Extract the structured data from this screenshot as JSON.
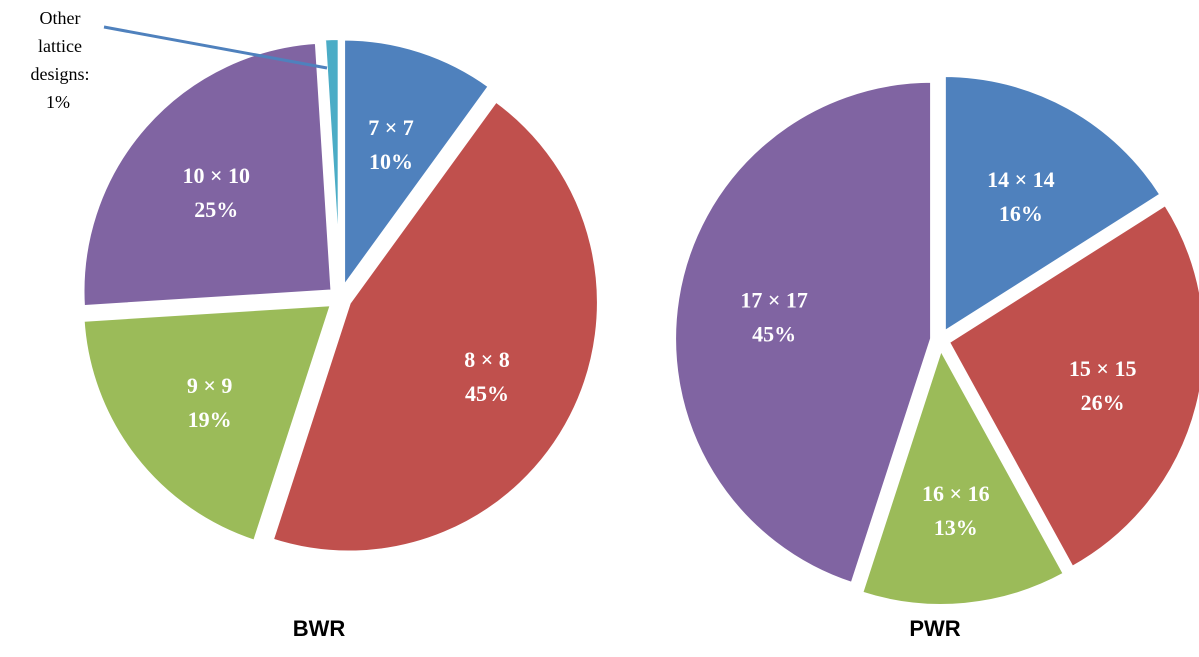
{
  "chart_data": [
    {
      "type": "pie",
      "title": "BWR",
      "categories": [
        "7 × 7",
        "8 × 8",
        "9 × 9",
        "10 × 10",
        "Other lattice designs:"
      ],
      "values": [
        10,
        45,
        19,
        25,
        1
      ],
      "value_labels": [
        "10%",
        "45%",
        "19%",
        "25%",
        "1%"
      ],
      "colors": [
        "#4F81BD",
        "#C0504D",
        "#9BBB59",
        "#8064A2",
        "#4BACC6"
      ],
      "callout": {
        "line1": "Other",
        "line2": "lattice",
        "line3": "designs:",
        "value": "1%",
        "leader_color": "#4F81BD"
      },
      "legend": "none",
      "exploded": true
    },
    {
      "type": "pie",
      "title": "PWR",
      "categories": [
        "14 × 14",
        "15 × 15",
        "16 × 16",
        "17 × 17"
      ],
      "values": [
        16,
        26,
        13,
        45
      ],
      "value_labels": [
        "16%",
        "26%",
        "13%",
        "45%"
      ],
      "colors": [
        "#4F81BD",
        "#C0504D",
        "#9BBB59",
        "#8064A2"
      ],
      "legend": "none",
      "exploded": true
    }
  ]
}
